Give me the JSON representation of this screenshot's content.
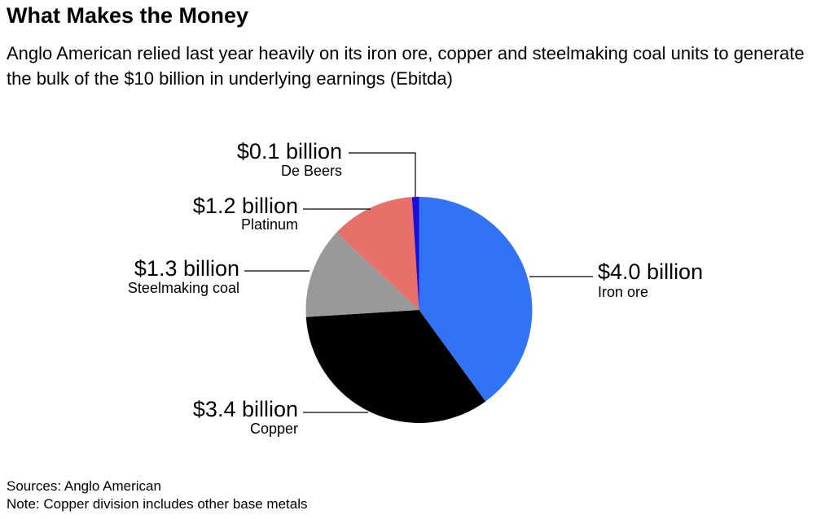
{
  "title": "What Makes the Money",
  "subtitle": "Anglo American relied last year heavily on its iron ore, copper and steelmaking coal units to generate the bulk of the $10 billion in underlying earnings (Ebitda)",
  "chart_data": {
    "type": "pie",
    "unit": "billion USD",
    "slices": [
      {
        "label": "Iron ore",
        "value": 4.0,
        "value_label": "$4.0 billion",
        "color": "#3272f5"
      },
      {
        "label": "Copper",
        "value": 3.4,
        "value_label": "$3.4 billion",
        "color": "#000000"
      },
      {
        "label": "Steelmaking coal",
        "value": 1.3,
        "value_label": "$1.3 billion",
        "color": "#999999"
      },
      {
        "label": "Platinum",
        "value": 1.2,
        "value_label": "$1.2 billion",
        "color": "#e8706a"
      },
      {
        "label": "De Beers",
        "value": 0.1,
        "value_label": "$0.1 billion",
        "color": "#1c0fd6"
      }
    ]
  },
  "footer": {
    "source": "Sources: Anglo American",
    "note": "Note: Copper division includes other base metals"
  }
}
